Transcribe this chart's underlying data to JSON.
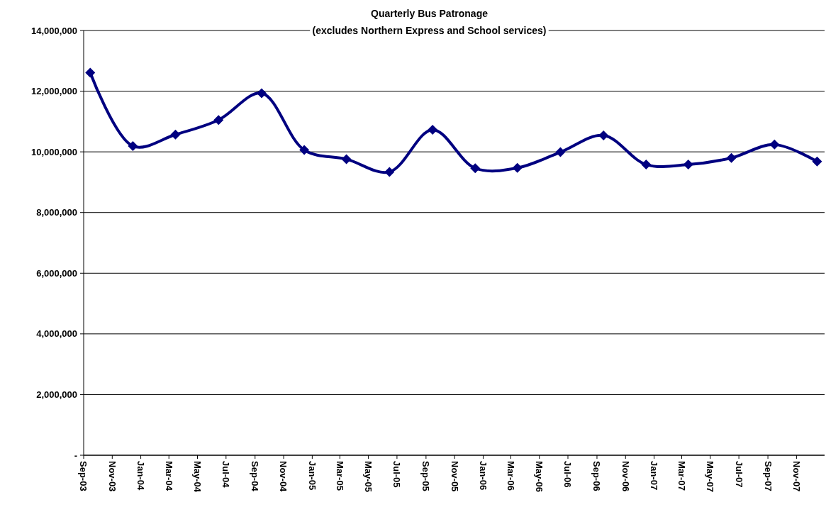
{
  "chart_data": {
    "type": "line",
    "title": "Quarterly Bus Patronage",
    "subtitle": "(excludes Northern Express and School services)",
    "x": [
      "2003-09-15",
      "2003-12-15",
      "2004-03-15",
      "2004-06-15",
      "2004-09-15",
      "2004-12-15",
      "2005-03-15",
      "2005-06-15",
      "2005-09-15",
      "2005-12-15",
      "2006-03-15",
      "2006-06-15",
      "2006-09-15",
      "2006-12-15",
      "2007-03-15",
      "2007-06-15",
      "2007-09-15",
      "2007-12-15"
    ],
    "series": [
      {
        "color": "#000080",
        "values": [
          12610000,
          10190000,
          10570000,
          11050000,
          11930000,
          10060000,
          9760000,
          9340000,
          10730000,
          9460000,
          9470000,
          9990000,
          10540000,
          9580000,
          9580000,
          9800000,
          10240000,
          9680000
        ]
      }
    ],
    "xlim": [
      "2003-09-01",
      "2007-12-31"
    ],
    "xticks": [
      {
        "value": "2003-09-01",
        "label": "Sep-03"
      },
      {
        "value": "2003-11-01",
        "label": "Nov-03"
      },
      {
        "value": "2004-01-01",
        "label": "Jan-04"
      },
      {
        "value": "2004-03-01",
        "label": "Mar-04"
      },
      {
        "value": "2004-05-01",
        "label": "May-04"
      },
      {
        "value": "2004-07-01",
        "label": "Jul-04"
      },
      {
        "value": "2004-09-01",
        "label": "Sep-04"
      },
      {
        "value": "2004-11-01",
        "label": "Nov-04"
      },
      {
        "value": "2005-01-01",
        "label": "Jan-05"
      },
      {
        "value": "2005-03-01",
        "label": "Mar-05"
      },
      {
        "value": "2005-05-01",
        "label": "May-05"
      },
      {
        "value": "2005-07-01",
        "label": "Jul-05"
      },
      {
        "value": "2005-09-01",
        "label": "Sep-05"
      },
      {
        "value": "2005-11-01",
        "label": "Nov-05"
      },
      {
        "value": "2006-01-01",
        "label": "Jan-06"
      },
      {
        "value": "2006-03-01",
        "label": "Mar-06"
      },
      {
        "value": "2006-05-01",
        "label": "May-06"
      },
      {
        "value": "2006-07-01",
        "label": "Jul-06"
      },
      {
        "value": "2006-09-01",
        "label": "Sep-06"
      },
      {
        "value": "2006-11-01",
        "label": "Nov-06"
      },
      {
        "value": "2007-01-01",
        "label": "Jan-07"
      },
      {
        "value": "2007-03-01",
        "label": "Mar-07"
      },
      {
        "value": "2007-05-01",
        "label": "May-07"
      },
      {
        "value": "2007-07-01",
        "label": "Jul-07"
      },
      {
        "value": "2007-09-01",
        "label": "Sep-07"
      },
      {
        "value": "2007-11-01",
        "label": "Nov-07"
      }
    ],
    "ylim": [
      0,
      14000000
    ],
    "yticks": [
      {
        "value": 0,
        "label": "-"
      },
      {
        "value": 2000000,
        "label": "2,000,000"
      },
      {
        "value": 4000000,
        "label": "4,000,000"
      },
      {
        "value": 6000000,
        "label": "6,000,000"
      },
      {
        "value": 8000000,
        "label": "8,000,000"
      },
      {
        "value": 10000000,
        "label": "10,000,000"
      },
      {
        "value": 12000000,
        "label": "12,000,000"
      },
      {
        "value": 14000000,
        "label": "14,000,000"
      }
    ],
    "grid": "y",
    "marker": "diamond",
    "line_style": "solid"
  }
}
